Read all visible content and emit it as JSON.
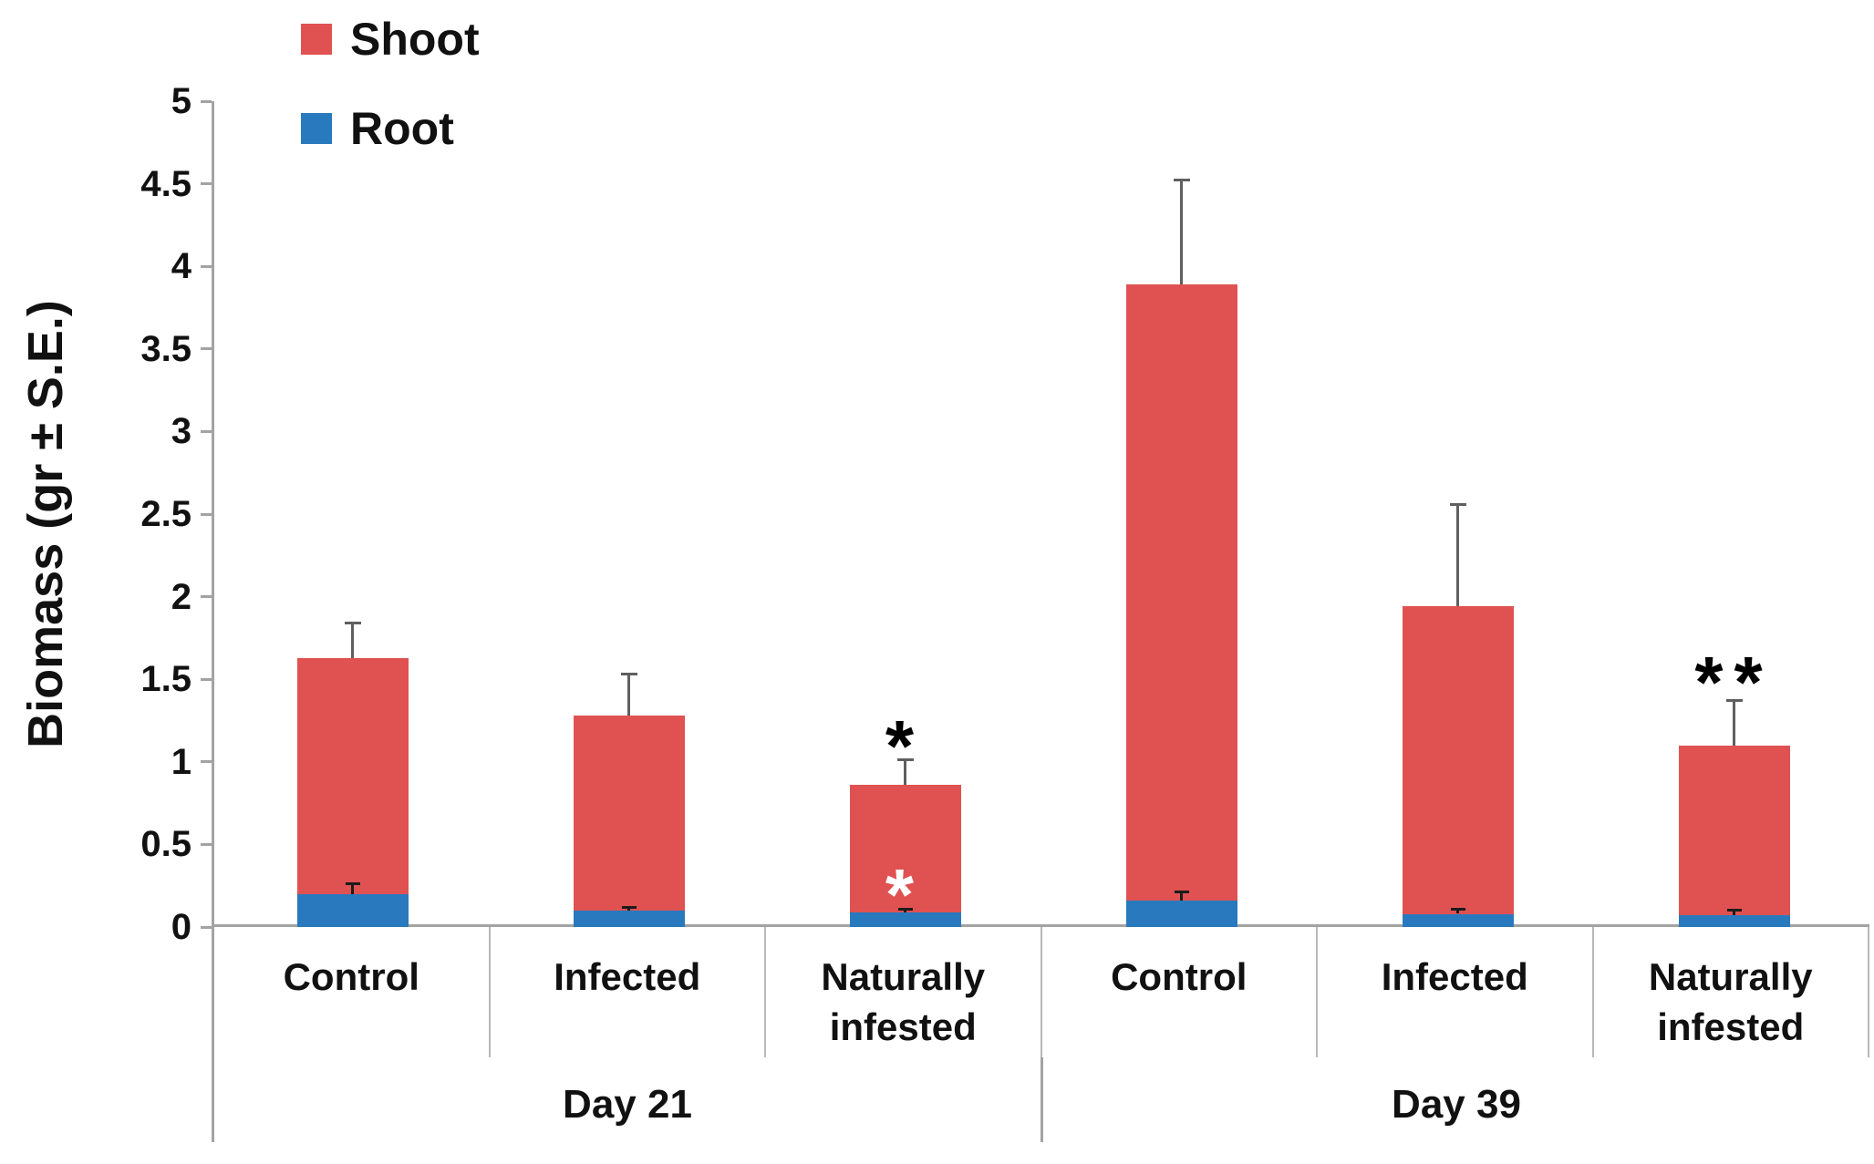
{
  "legend": {
    "position": "top-left",
    "items": [
      {
        "label": "Shoot",
        "color": "#e05252"
      },
      {
        "label": "Root",
        "color": "#2979be"
      }
    ]
  },
  "y_axis": {
    "title": "Biomass (gr ± S.E.)",
    "min": 0,
    "max": 5,
    "tick_step": 0.5
  },
  "chart_data": {
    "type": "bar",
    "stacked": true,
    "title": "",
    "ylabel": "Biomass (gr ± S.E.)",
    "ylim": [
      0,
      5
    ],
    "ytick_step": 0.5,
    "grid": false,
    "legend_position": "top-left",
    "group_labels": [
      "Day 21",
      "Day 39"
    ],
    "group_span": 3,
    "categories": [
      "Control",
      "Infected",
      "Naturally infested",
      "Control",
      "Infected",
      "Naturally infested"
    ],
    "series": [
      {
        "name": "Root",
        "color": "#2979be",
        "values": [
          0.2,
          0.1,
          0.09,
          0.16,
          0.08,
          0.07
        ],
        "error_plus": [
          0.06,
          0.02,
          0.02,
          0.05,
          0.03,
          0.03
        ]
      },
      {
        "name": "Shoot",
        "color": "#e05252",
        "values": [
          1.43,
          1.18,
          0.77,
          3.73,
          1.86,
          1.03
        ],
        "error_plus": [
          0.21,
          0.25,
          0.15,
          0.63,
          0.62,
          0.27
        ]
      }
    ],
    "stack_totals": [
      1.63,
      1.28,
      0.86,
      3.89,
      1.94,
      1.1
    ],
    "total_error_tops": [
      1.84,
      1.53,
      1.01,
      4.52,
      2.56,
      1.37
    ],
    "root_error_tops": [
      0.26,
      0.12,
      0.11,
      0.21,
      0.11,
      0.1
    ],
    "annotations": [
      {
        "bar_index": 2,
        "text": "*",
        "color": "#000000",
        "y_value": 1.18,
        "placement": "above-error"
      },
      {
        "bar_index": 2,
        "text": "*",
        "color": "#ffffff",
        "y_value": 0.28,
        "placement": "inside-bar"
      },
      {
        "bar_index": 5,
        "text": "**",
        "color": "#000000",
        "y_value": 1.57,
        "placement": "above-error"
      }
    ]
  }
}
